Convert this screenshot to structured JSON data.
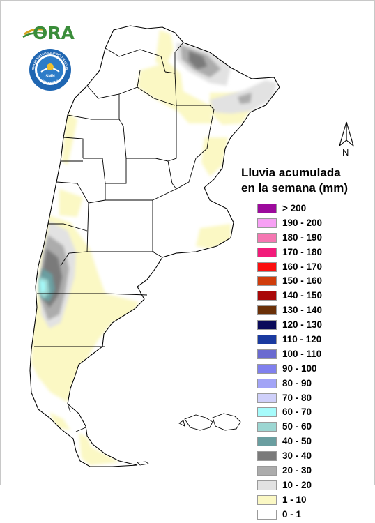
{
  "branding": {
    "ora_logo_text": "ORA",
    "seal_text": "SERVICIO METEOROLÓGICO NACIONAL",
    "seal_bottom": "ARGENTINA",
    "seal_center": "SMN"
  },
  "north_arrow": {
    "label": "N"
  },
  "legend": {
    "title_line1": "Lluvia acumulada",
    "title_line2": "en la semana (mm)",
    "items": [
      {
        "label": "> 200",
        "color": "#9c0a9c"
      },
      {
        "label": "190 - 200",
        "color": "#f7a0f4"
      },
      {
        "label": "180 - 190",
        "color": "#f577b2"
      },
      {
        "label": "170 - 180",
        "color": "#f21b7a"
      },
      {
        "label": "160 - 170",
        "color": "#fb0f0f"
      },
      {
        "label": "150 - 160",
        "color": "#d03d0c"
      },
      {
        "label": "140 - 150",
        "color": "#a90808"
      },
      {
        "label": "130 - 140",
        "color": "#6a3008"
      },
      {
        "label": "120 - 130",
        "color": "#0a0a5a"
      },
      {
        "label": "110 - 120",
        "color": "#1a3aa0"
      },
      {
        "label": "100 - 110",
        "color": "#6a6ad0"
      },
      {
        "label": "90 - 100",
        "color": "#8080ee"
      },
      {
        "label": "80 - 90",
        "color": "#a2a4f6"
      },
      {
        "label": "70 - 80",
        "color": "#cfd0fa"
      },
      {
        "label": "60 - 70",
        "color": "#a6fbfb"
      },
      {
        "label": "50 - 60",
        "color": "#9cd6d2"
      },
      {
        "label": "40 - 50",
        "color": "#6a9ea0"
      },
      {
        "label": "30 - 40",
        "color": "#7a7a7a"
      },
      {
        "label": "20 - 30",
        "color": "#acacac"
      },
      {
        "label": "10 - 20",
        "color": "#e2e2e2"
      },
      {
        "label": "1 - 10",
        "color": "#fbf8c4"
      },
      {
        "label": "0 - 1",
        "color": "#ffffff"
      }
    ]
  }
}
